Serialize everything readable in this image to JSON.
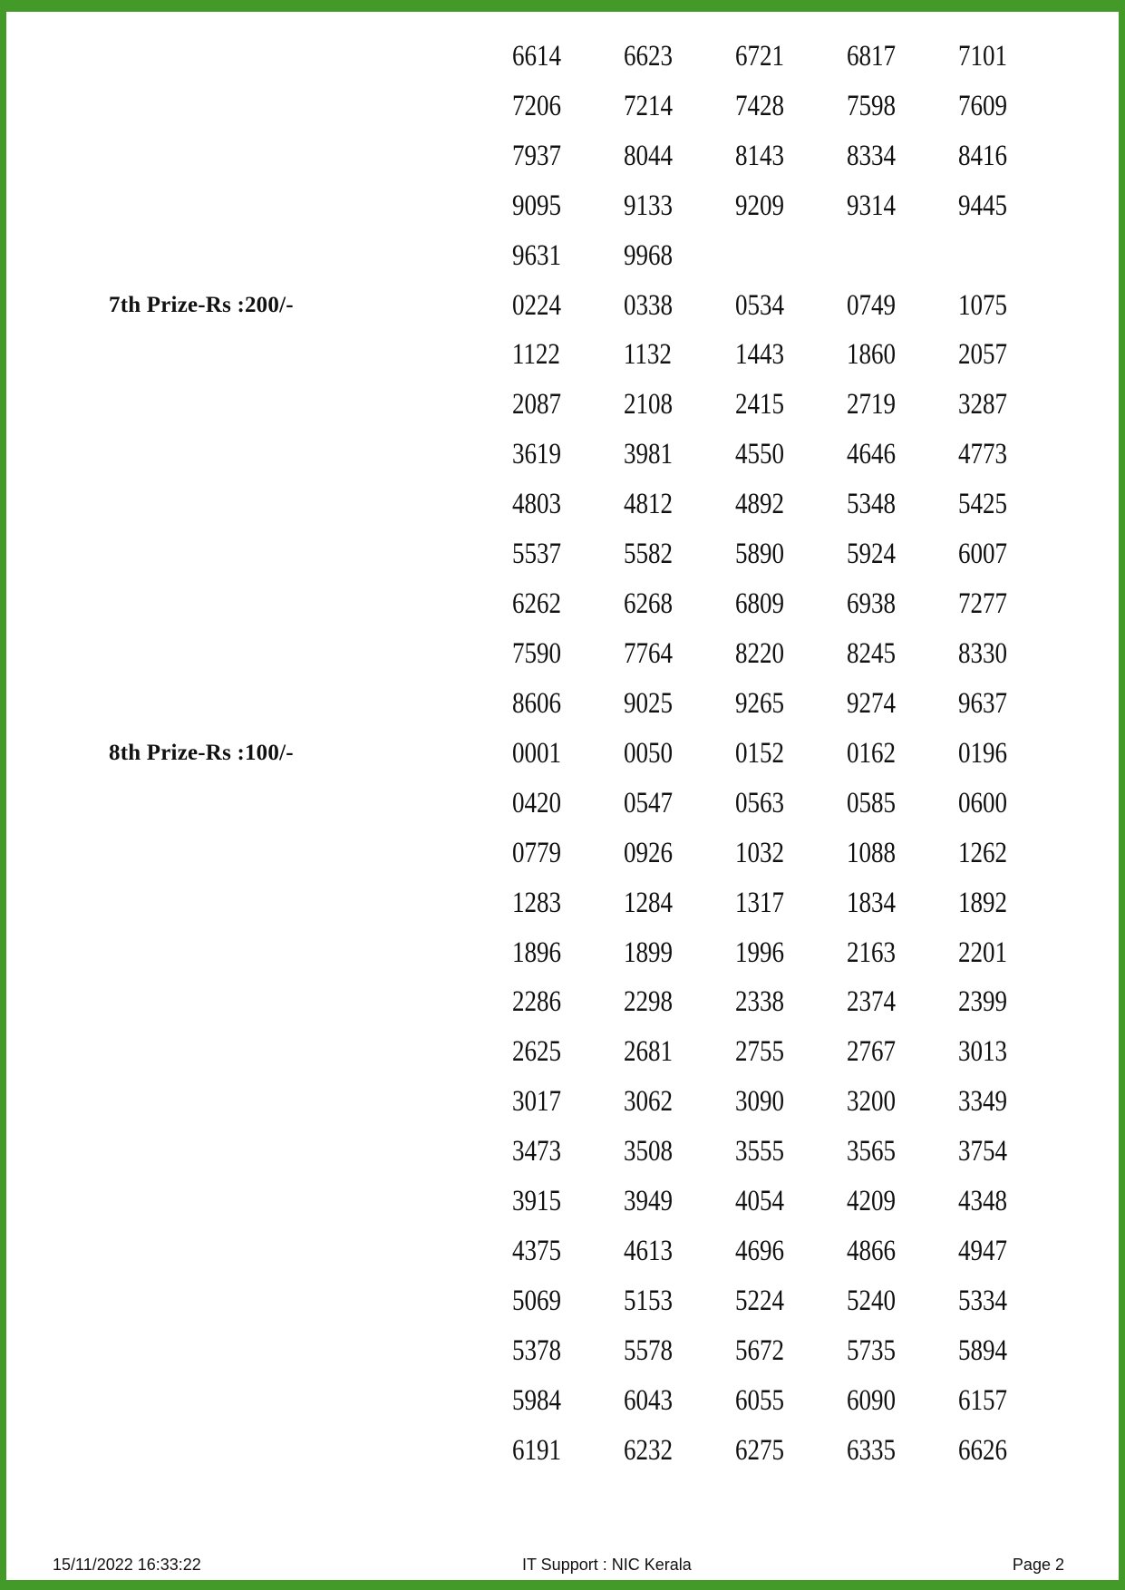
{
  "page": {
    "border_color": "#449A28",
    "text_color": "#111111",
    "page_number": "Page 2"
  },
  "footer": {
    "timestamp": "15/11/2022 16:33:22",
    "support": "IT Support : NIC Kerala",
    "page_label": "Page 2"
  },
  "sections": [
    {
      "label": "",
      "rows": [
        [
          "6614",
          "6623",
          "6721",
          "6817",
          "7101"
        ],
        [
          "7206",
          "7214",
          "7428",
          "7598",
          "7609"
        ],
        [
          "7937",
          "8044",
          "8143",
          "8334",
          "8416"
        ],
        [
          "9095",
          "9133",
          "9209",
          "9314",
          "9445"
        ],
        [
          "9631",
          "9968"
        ]
      ]
    },
    {
      "label": "7th Prize-Rs :200/-",
      "rows": [
        [
          "0224",
          "0338",
          "0534",
          "0749",
          "1075"
        ],
        [
          "1122",
          "1132",
          "1443",
          "1860",
          "2057"
        ],
        [
          "2087",
          "2108",
          "2415",
          "2719",
          "3287"
        ],
        [
          "3619",
          "3981",
          "4550",
          "4646",
          "4773"
        ],
        [
          "4803",
          "4812",
          "4892",
          "5348",
          "5425"
        ],
        [
          "5537",
          "5582",
          "5890",
          "5924",
          "6007"
        ],
        [
          "6262",
          "6268",
          "6809",
          "6938",
          "7277"
        ],
        [
          "7590",
          "7764",
          "8220",
          "8245",
          "8330"
        ],
        [
          "8606",
          "9025",
          "9265",
          "9274",
          "9637"
        ]
      ]
    },
    {
      "label": "8th Prize-Rs :100/-",
      "rows": [
        [
          "0001",
          "0050",
          "0152",
          "0162",
          "0196"
        ],
        [
          "0420",
          "0547",
          "0563",
          "0585",
          "0600"
        ],
        [
          "0779",
          "0926",
          "1032",
          "1088",
          "1262"
        ],
        [
          "1283",
          "1284",
          "1317",
          "1834",
          "1892"
        ],
        [
          "1896",
          "1899",
          "1996",
          "2163",
          "2201"
        ],
        [
          "2286",
          "2298",
          "2338",
          "2374",
          "2399"
        ],
        [
          "2625",
          "2681",
          "2755",
          "2767",
          "3013"
        ],
        [
          "3017",
          "3062",
          "3090",
          "3200",
          "3349"
        ],
        [
          "3473",
          "3508",
          "3555",
          "3565",
          "3754"
        ],
        [
          "3915",
          "3949",
          "4054",
          "4209",
          "4348"
        ],
        [
          "4375",
          "4613",
          "4696",
          "4866",
          "4947"
        ],
        [
          "5069",
          "5153",
          "5224",
          "5240",
          "5334"
        ],
        [
          "5378",
          "5578",
          "5672",
          "5735",
          "5894"
        ],
        [
          "5984",
          "6043",
          "6055",
          "6090",
          "6157"
        ],
        [
          "6191",
          "6232",
          "6275",
          "6335",
          "6626"
        ]
      ]
    }
  ]
}
